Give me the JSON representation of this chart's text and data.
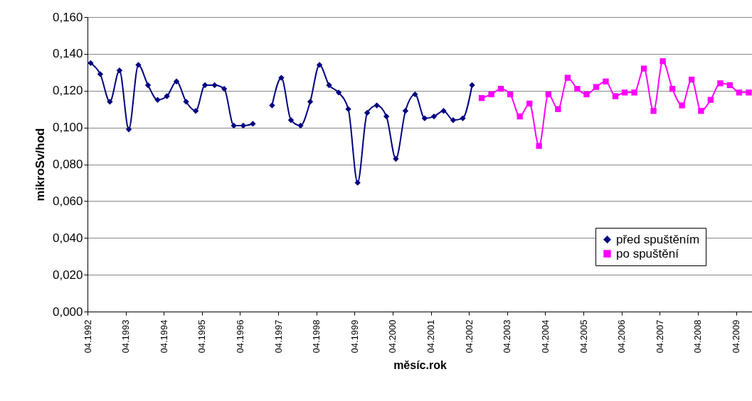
{
  "chart_data": {
    "type": "line",
    "xlabel": "měsíc.rok",
    "ylabel": "mikroSv/hod",
    "xlim": [
      "1992-04",
      "2009-09"
    ],
    "xticks": [
      {
        "value": "1992-04",
        "label": "04.1992"
      },
      {
        "value": "1993-04",
        "label": "04.1993"
      },
      {
        "value": "1994-04",
        "label": "04.1994"
      },
      {
        "value": "1995-04",
        "label": "04.1995"
      },
      {
        "value": "1996-04",
        "label": "04.1996"
      },
      {
        "value": "1997-04",
        "label": "04.1997"
      },
      {
        "value": "1998-04",
        "label": "04.1998"
      },
      {
        "value": "1999-04",
        "label": "04.1999"
      },
      {
        "value": "2000-04",
        "label": "04.2000"
      },
      {
        "value": "2001-04",
        "label": "04.2001"
      },
      {
        "value": "2002-04",
        "label": "04.2002"
      },
      {
        "value": "2003-04",
        "label": "04.2003"
      },
      {
        "value": "2004-04",
        "label": "04.2004"
      },
      {
        "value": "2005-04",
        "label": "04.2005"
      },
      {
        "value": "2006-04",
        "label": "04.2006"
      },
      {
        "value": "2007-04",
        "label": "04.2007"
      },
      {
        "value": "2008-04",
        "label": "04.2008"
      },
      {
        "value": "2009-04",
        "label": "04.2009"
      }
    ],
    "ylim": [
      0,
      0.16
    ],
    "yticks": [
      {
        "value": 0,
        "label": "0,000"
      },
      {
        "value": 0.02,
        "label": "0,020"
      },
      {
        "value": 0.04,
        "label": "0,040"
      },
      {
        "value": 0.06,
        "label": "0,060"
      },
      {
        "value": 0.08,
        "label": "0,080"
      },
      {
        "value": 0.1,
        "label": "0,100"
      },
      {
        "value": 0.12,
        "label": "0,120"
      },
      {
        "value": 0.14,
        "label": "0,140"
      },
      {
        "value": 0.16,
        "label": "0,160"
      }
    ],
    "grid": "y",
    "legend": "bottom right",
    "series": [
      {
        "name": "před spuštěním",
        "color": "#000080",
        "marker": "diamond",
        "x": [
          "1992-05",
          "1992-08",
          "1992-11",
          "1993-02",
          "1993-05",
          "1993-08",
          "1993-11",
          "1994-02",
          "1994-05",
          "1994-08",
          "1994-11",
          "1995-02",
          "1995-05",
          "1995-08",
          "1995-11",
          "1996-02",
          "1996-05",
          "1996-08",
          "1996-11",
          "1997-02",
          "1997-05",
          "1997-08",
          "1997-11",
          "1998-02",
          "1998-05",
          "1998-08",
          "1998-11",
          "1999-02",
          "1999-05",
          "1999-08",
          "1999-11",
          "2000-02",
          "2000-05",
          "2000-08",
          "2000-11",
          "2001-02",
          "2001-05",
          "2001-08",
          "2001-11",
          "2002-02",
          "2002-05"
        ],
        "values": [
          0.135,
          0.129,
          0.114,
          0.131,
          0.099,
          0.134,
          0.123,
          0.115,
          0.117,
          0.125,
          0.114,
          0.109,
          0.123,
          0.123,
          0.121,
          0.101,
          0.101,
          0.102,
          null,
          0.112,
          0.127,
          0.104,
          0.101,
          0.114,
          0.134,
          0.123,
          0.119,
          0.11,
          0.07,
          0.108,
          0.112,
          0.106,
          0.083,
          0.109,
          0.118,
          0.105,
          0.106,
          0.109,
          0.104,
          0.105,
          0.123
        ]
      },
      {
        "name": "po spuštění",
        "color": "#ff00ff",
        "marker": "square",
        "x": [
          "2002-08",
          "2002-11",
          "2003-02",
          "2003-05",
          "2003-08",
          "2003-11",
          "2004-02",
          "2004-05",
          "2004-08",
          "2004-11",
          "2005-02",
          "2005-05",
          "2005-08",
          "2005-11",
          "2006-02",
          "2006-05",
          "2006-08",
          "2006-11",
          "2007-02",
          "2007-05",
          "2007-08",
          "2007-11",
          "2008-02",
          "2008-05",
          "2008-08",
          "2008-11",
          "2009-02",
          "2009-05",
          "2009-08"
        ],
        "values": [
          0.116,
          0.118,
          0.121,
          0.118,
          0.106,
          0.113,
          0.09,
          0.118,
          0.11,
          0.127,
          0.121,
          0.118,
          0.122,
          0.125,
          0.117,
          0.119,
          0.119,
          0.132,
          0.109,
          0.136,
          0.121,
          0.112,
          0.126,
          0.109,
          0.115,
          0.124,
          0.123,
          0.119,
          0.119
        ]
      }
    ]
  }
}
